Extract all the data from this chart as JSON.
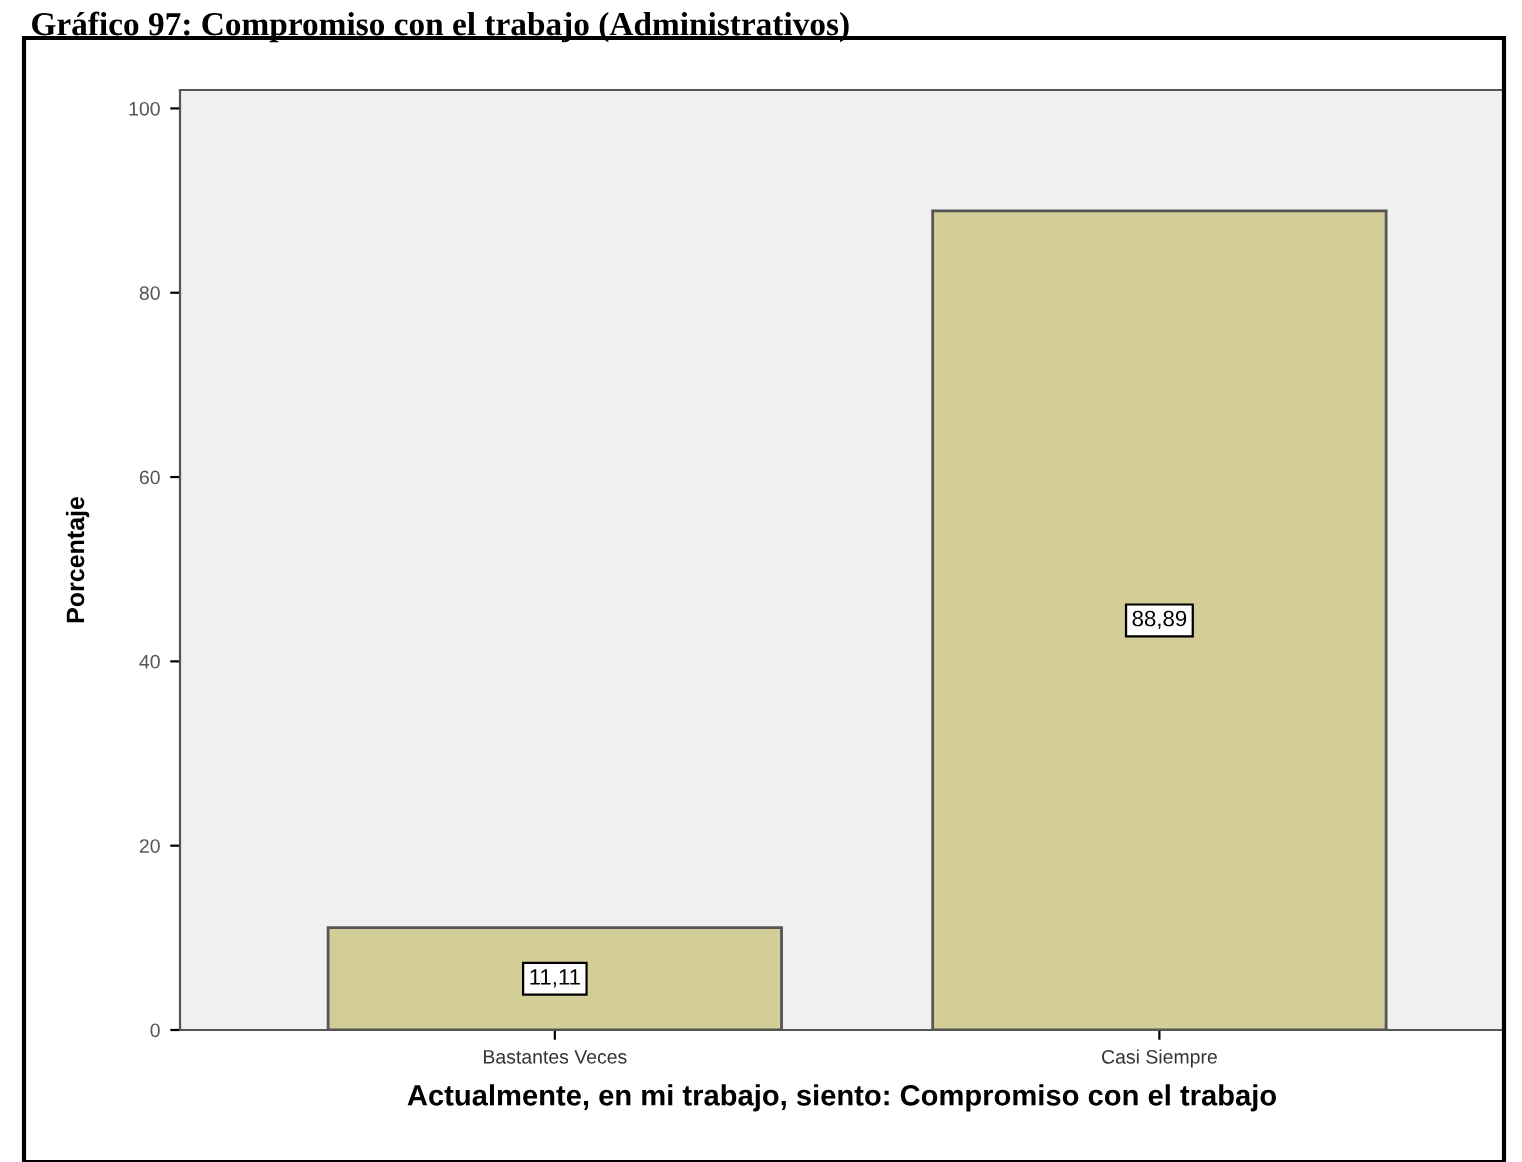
{
  "chart_data": {
    "type": "bar",
    "title": "Gráfico 97: Compromiso con el trabajo (Administrativos)",
    "xlabel": "Actualmente, en mi trabajo, siento: Compromiso con el trabajo",
    "ylabel": "Porcentaje",
    "categories": [
      "Bastantes Veces",
      "Casi Siempre"
    ],
    "values": [
      11.11,
      88.89
    ],
    "color": "#d3ce97",
    "value_labels": [
      "11,11",
      "88,89"
    ],
    "ylim": [
      0,
      102
    ],
    "yticks": [
      0,
      20,
      40,
      60,
      80,
      100
    ],
    "grid": false
  }
}
